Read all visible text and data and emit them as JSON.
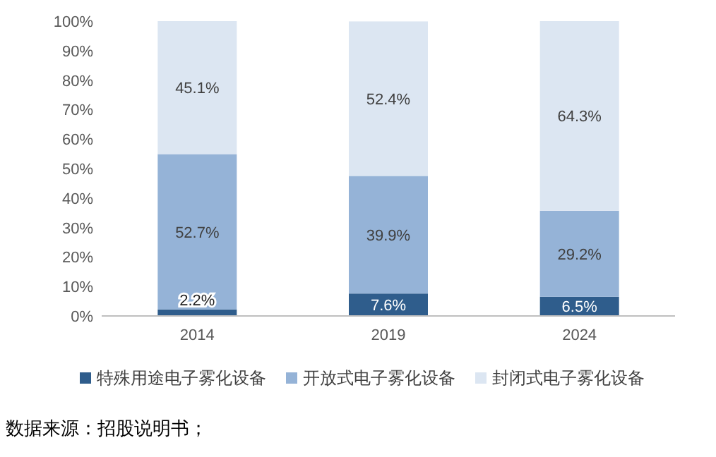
{
  "chart_data": {
    "type": "bar",
    "stacked": true,
    "categories": [
      "2014",
      "2019",
      "2024"
    ],
    "series": [
      {
        "name": "特殊用途电子雾化设备",
        "color": "#2f5d8c",
        "values": [
          2.2,
          7.6,
          6.5
        ],
        "value_labels": [
          "2.2%",
          "7.6%",
          "6.5%"
        ]
      },
      {
        "name": "开放式电子雾化设备",
        "color": "#95b3d7",
        "values": [
          52.7,
          39.9,
          29.2
        ],
        "value_labels": [
          "52.7%",
          "39.9%",
          "29.2%"
        ]
      },
      {
        "name": "封闭式电子雾化设备",
        "color": "#dce6f2",
        "values": [
          45.1,
          52.4,
          64.3
        ],
        "value_labels": [
          "45.1%",
          "52.4%",
          "64.3%"
        ]
      }
    ],
    "ylim": [
      0,
      100
    ],
    "yticks": [
      {
        "value": 0,
        "label": "0%"
      },
      {
        "value": 10,
        "label": "10%"
      },
      {
        "value": 20,
        "label": "20%"
      },
      {
        "value": 30,
        "label": "30%"
      },
      {
        "value": 40,
        "label": "40%"
      },
      {
        "value": 50,
        "label": "50%"
      },
      {
        "value": 60,
        "label": "60%"
      },
      {
        "value": 70,
        "label": "70%"
      },
      {
        "value": 80,
        "label": "80%"
      },
      {
        "value": 90,
        "label": "90%"
      },
      {
        "value": 100,
        "label": "100%"
      }
    ],
    "legend": "bottom",
    "annotations": [
      "数据来源：招股说明书；"
    ]
  }
}
